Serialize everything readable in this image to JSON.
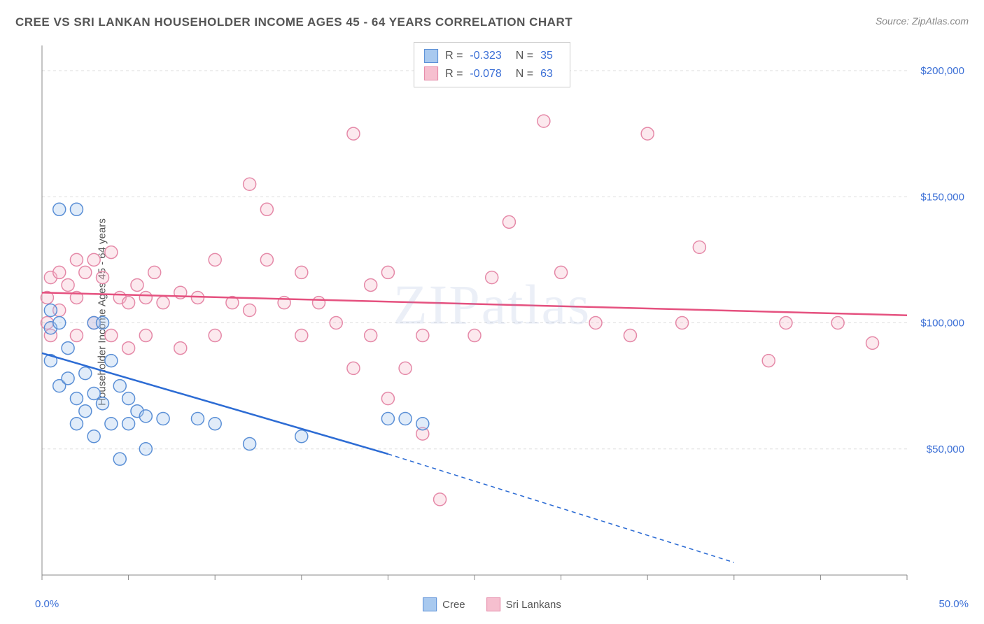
{
  "title": "CREE VS SRI LANKAN HOUSEHOLDER INCOME AGES 45 - 64 YEARS CORRELATION CHART",
  "source": "Source: ZipAtlas.com",
  "watermark": "ZIPatlas",
  "chart": {
    "type": "scatter",
    "y_label": "Householder Income Ages 45 - 64 years",
    "xlim": [
      0,
      50
    ],
    "ylim": [
      0,
      210000
    ],
    "x_tick_labels": {
      "min": "0.0%",
      "max": "50.0%"
    },
    "y_ticks": [
      50000,
      100000,
      150000,
      200000
    ],
    "y_tick_labels": [
      "$50,000",
      "$100,000",
      "$150,000",
      "$200,000"
    ],
    "x_tick_positions": [
      0,
      5,
      10,
      15,
      20,
      25,
      30,
      35,
      40,
      45,
      50
    ],
    "background_color": "#ffffff",
    "grid_color": "#dddddd",
    "grid_dash": "4,4",
    "axis_color": "#888888",
    "tick_color": "#888888",
    "marker_radius": 9,
    "marker_fill_opacity": 0.35,
    "marker_stroke_width": 1.5,
    "trend_line_width": 2.5,
    "series": [
      {
        "name": "Cree",
        "color_fill": "#a8c9ef",
        "color_stroke": "#5a8fd6",
        "trend_color": "#2d6cd4",
        "stats": {
          "R": "-0.323",
          "N": "35"
        },
        "trend": {
          "x1": 0,
          "y1": 88000,
          "x2": 20,
          "y2": 48000,
          "dash_after_x": 20,
          "dash_to_x": 40,
          "dash_to_y": 5000
        },
        "points": [
          [
            0.5,
            98000
          ],
          [
            0.5,
            105000
          ],
          [
            0.5,
            85000
          ],
          [
            1,
            145000
          ],
          [
            1,
            100000
          ],
          [
            1,
            75000
          ],
          [
            1.5,
            90000
          ],
          [
            1.5,
            78000
          ],
          [
            2,
            70000
          ],
          [
            2,
            60000
          ],
          [
            2,
            145000
          ],
          [
            2.5,
            80000
          ],
          [
            2.5,
            65000
          ],
          [
            3,
            100000
          ],
          [
            3,
            72000
          ],
          [
            3,
            55000
          ],
          [
            3.5,
            100000
          ],
          [
            3.5,
            68000
          ],
          [
            4,
            85000
          ],
          [
            4,
            60000
          ],
          [
            4.5,
            75000
          ],
          [
            4.5,
            46000
          ],
          [
            5,
            60000
          ],
          [
            5,
            70000
          ],
          [
            5.5,
            65000
          ],
          [
            6,
            63000
          ],
          [
            6,
            50000
          ],
          [
            7,
            62000
          ],
          [
            9,
            62000
          ],
          [
            10,
            60000
          ],
          [
            12,
            52000
          ],
          [
            15,
            55000
          ],
          [
            20,
            62000
          ],
          [
            21,
            62000
          ],
          [
            22,
            60000
          ]
        ]
      },
      {
        "name": "Sri Lankans",
        "color_fill": "#f6bfcf",
        "color_stroke": "#e589a8",
        "trend_color": "#e5517f",
        "stats": {
          "R": "-0.078",
          "N": "63"
        },
        "trend": {
          "x1": 0,
          "y1": 112000,
          "x2": 50,
          "y2": 103000
        },
        "points": [
          [
            0.3,
            100000
          ],
          [
            0.3,
            110000
          ],
          [
            0.5,
            118000
          ],
          [
            0.5,
            95000
          ],
          [
            1,
            120000
          ],
          [
            1,
            105000
          ],
          [
            1.5,
            115000
          ],
          [
            2,
            125000
          ],
          [
            2,
            110000
          ],
          [
            2,
            95000
          ],
          [
            2.5,
            120000
          ],
          [
            3,
            125000
          ],
          [
            3,
            100000
          ],
          [
            3.5,
            118000
          ],
          [
            4,
            128000
          ],
          [
            4,
            95000
          ],
          [
            4.5,
            110000
          ],
          [
            5,
            108000
          ],
          [
            5,
            90000
          ],
          [
            5.5,
            115000
          ],
          [
            6,
            110000
          ],
          [
            6,
            95000
          ],
          [
            6.5,
            120000
          ],
          [
            7,
            108000
          ],
          [
            8,
            112000
          ],
          [
            8,
            90000
          ],
          [
            9,
            110000
          ],
          [
            10,
            125000
          ],
          [
            10,
            95000
          ],
          [
            11,
            108000
          ],
          [
            12,
            155000
          ],
          [
            12,
            105000
          ],
          [
            13,
            125000
          ],
          [
            13,
            145000
          ],
          [
            14,
            108000
          ],
          [
            15,
            120000
          ],
          [
            15,
            95000
          ],
          [
            16,
            108000
          ],
          [
            17,
            100000
          ],
          [
            18,
            82000
          ],
          [
            18,
            175000
          ],
          [
            19,
            115000
          ],
          [
            19,
            95000
          ],
          [
            20,
            70000
          ],
          [
            20,
            120000
          ],
          [
            21,
            82000
          ],
          [
            22,
            56000
          ],
          [
            22,
            95000
          ],
          [
            23,
            30000
          ],
          [
            25,
            95000
          ],
          [
            26,
            118000
          ],
          [
            27,
            140000
          ],
          [
            29,
            180000
          ],
          [
            30,
            120000
          ],
          [
            32,
            100000
          ],
          [
            34,
            95000
          ],
          [
            35,
            175000
          ],
          [
            37,
            100000
          ],
          [
            38,
            130000
          ],
          [
            42,
            85000
          ],
          [
            43,
            100000
          ],
          [
            46,
            100000
          ],
          [
            48,
            92000
          ]
        ]
      }
    ]
  },
  "legend": {
    "items": [
      {
        "label": "Cree",
        "fill": "#a8c9ef",
        "stroke": "#5a8fd6"
      },
      {
        "label": "Sri Lankans",
        "fill": "#f6bfcf",
        "stroke": "#e589a8"
      }
    ]
  }
}
